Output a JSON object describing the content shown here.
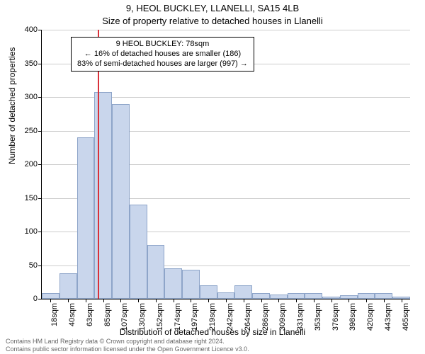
{
  "title_main": "9, HEOL BUCKLEY, LLANELLI, SA15 4LB",
  "title_sub": "Size of property relative to detached houses in Llanelli",
  "chart": {
    "type": "histogram",
    "background_color": "#ffffff",
    "grid_color": "#cccccc",
    "bar_fill": "#c9d6ec",
    "bar_stroke": "#8ea5c9",
    "ref_line_color": "#d9313a",
    "ylim": [
      0,
      400
    ],
    "ytick_step": 50,
    "yticks": [
      0,
      50,
      100,
      150,
      200,
      250,
      300,
      350,
      400
    ],
    "x_categories": [
      "18sqm",
      "40sqm",
      "63sqm",
      "85sqm",
      "107sqm",
      "130sqm",
      "152sqm",
      "174sqm",
      "197sqm",
      "219sqm",
      "242sqm",
      "264sqm",
      "286sqm",
      "309sqm",
      "331sqm",
      "353sqm",
      "376sqm",
      "398sqm",
      "420sqm",
      "443sqm",
      "465sqm"
    ],
    "values": [
      8,
      38,
      240,
      307,
      290,
      140,
      80,
      45,
      43,
      20,
      10,
      20,
      8,
      6,
      8,
      8,
      3,
      5,
      8,
      8,
      3
    ],
    "ref_line_index": 2.7,
    "bar_width_ratio": 1.0,
    "ylabel": "Number of detached properties",
    "xlabel": "Distribution of detached houses by size in Llanelli",
    "label_fontsize": 12,
    "tick_fontsize": 11,
    "title_fontsize": 13
  },
  "annotation": {
    "line1": "9 HEOL BUCKLEY: 78sqm",
    "line2": "← 16% of detached houses are smaller (186)",
    "line3": "83% of semi-detached houses are larger (997) →",
    "border": "#000000",
    "bg": "#ffffff",
    "fontsize": 11
  },
  "footer": {
    "line1": "Contains HM Land Registry data © Crown copyright and database right 2024.",
    "line2": "Contains public sector information licensed under the Open Government Licence v3.0."
  }
}
